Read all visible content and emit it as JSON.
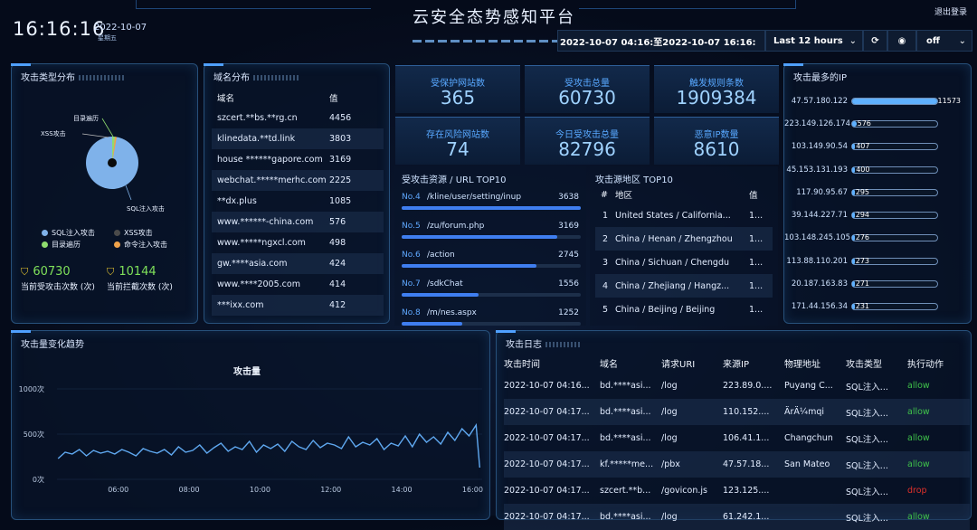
{
  "header": {
    "clock": "16:16:16",
    "date": "2022-10-07",
    "weekday": "星期五",
    "title": "云安全态势感知平台",
    "logout": "退出登录",
    "time_range": "2022-10-07 04:16:至2022-10-07 16:16:",
    "range_select": "Last 12 hours",
    "refresh_select": "off"
  },
  "attack_types": {
    "title": "攻击类型分布",
    "pie_labels": {
      "dir": "目录遍历",
      "xss": "XSS攻击",
      "sql": "SQL注入攻击"
    },
    "legend": [
      {
        "label": "SQL注入攻击",
        "color": "#7fb2ea"
      },
      {
        "label": "XSS攻击",
        "color": "#4a4a4a"
      },
      {
        "label": "目录遍历",
        "color": "#8fdc6e"
      },
      {
        "label": "命令注入攻击",
        "color": "#f0a24a"
      }
    ],
    "current_attacks": "60730",
    "current_attacks_label": "当前受攻击次数 (次)",
    "current_blocked": "10144",
    "current_blocked_label": "当前拦截次数 (次)"
  },
  "domains": {
    "title": "域名分布",
    "col_domain": "域名",
    "col_value": "值",
    "rows": [
      {
        "domain": "szcert.**bs.**rg.cn",
        "value": "4456"
      },
      {
        "domain": "klinedata.**td.link",
        "value": "3803"
      },
      {
        "domain": "house ******gapore.com",
        "value": "3169"
      },
      {
        "domain": "webchat.*****merhc.com",
        "value": "2225"
      },
      {
        "domain": "**dx.plus",
        "value": "1085"
      },
      {
        "domain": "www.******-china.com",
        "value": "576"
      },
      {
        "domain": "www.*****ngxcl.com",
        "value": "498"
      },
      {
        "domain": "gw.****asia.com",
        "value": "424"
      },
      {
        "domain": "www.****2005.com",
        "value": "414"
      },
      {
        "domain": "***ixx.com",
        "value": "412"
      }
    ]
  },
  "stats": [
    {
      "label": "受保护网站数",
      "value": "365"
    },
    {
      "label": "受攻击总量",
      "value": "60730"
    },
    {
      "label": "触发规则条数",
      "value": "1909384"
    },
    {
      "label": "存在风险网站数",
      "value": "74"
    },
    {
      "label": "今日受攻击总量",
      "value": "82796"
    },
    {
      "label": "恶意IP数量",
      "value": "8610"
    }
  ],
  "url_top": {
    "title": "受攻击资源 / URL TOP10",
    "rows": [
      {
        "no": "No.4",
        "url": "/kline/user/setting/inup",
        "value": "3638",
        "ratio": 1.0
      },
      {
        "no": "No.5",
        "url": "/zu/forum.php",
        "value": "3169",
        "ratio": 0.87
      },
      {
        "no": "No.6",
        "url": "/action",
        "value": "2745",
        "ratio": 0.75
      },
      {
        "no": "No.7",
        "url": "/sdkChat",
        "value": "1556",
        "ratio": 0.43
      },
      {
        "no": "No.8",
        "url": "/m/nes.aspx",
        "value": "1252",
        "ratio": 0.34
      }
    ]
  },
  "region_top": {
    "title": "攻击源地区 TOP10",
    "col_no": "#",
    "col_region": "地区",
    "col_value": "值",
    "rows": [
      {
        "no": "1",
        "region": "United States / California...",
        "value": "1..."
      },
      {
        "no": "2",
        "region": "China / Henan / Zhengzhou",
        "value": "1..."
      },
      {
        "no": "3",
        "region": "China / Sichuan / Chengdu",
        "value": "1..."
      },
      {
        "no": "4",
        "region": "China / Zhejiang / Hangz...",
        "value": "1..."
      },
      {
        "no": "5",
        "region": "China / Beijing / Beijing",
        "value": "1..."
      }
    ]
  },
  "top_ips": {
    "title": "攻击最多的IP",
    "rows": [
      {
        "ip": "47.57.180.122",
        "value": "11573",
        "ratio": 1.0
      },
      {
        "ip": "223.149.126.174",
        "value": "576",
        "ratio": 0.05
      },
      {
        "ip": "103.149.90.54",
        "value": "407",
        "ratio": 0.035
      },
      {
        "ip": "45.153.131.193",
        "value": "400",
        "ratio": 0.035
      },
      {
        "ip": "117.90.95.67",
        "value": "295",
        "ratio": 0.026
      },
      {
        "ip": "39.144.227.71",
        "value": "294",
        "ratio": 0.025
      },
      {
        "ip": "103.148.245.105",
        "value": "276",
        "ratio": 0.024
      },
      {
        "ip": "113.88.110.201",
        "value": "273",
        "ratio": 0.024
      },
      {
        "ip": "20.187.163.83",
        "value": "271",
        "ratio": 0.023
      },
      {
        "ip": "171.44.156.34",
        "value": "231",
        "ratio": 0.02
      }
    ]
  },
  "trend": {
    "title": "攻击量变化趋势"
  },
  "chart_data": {
    "type": "line",
    "title": "攻击量",
    "ylabel": "",
    "yticks": [
      "1000次",
      "500次",
      "0次"
    ],
    "xticks": [
      "06:00",
      "08:00",
      "10:00",
      "12:00",
      "14:00",
      "16:00"
    ],
    "ylim": [
      0,
      1000
    ],
    "xlim": [
      4.27,
      16.27
    ],
    "series": [
      {
        "color": "#5fa8f0",
        "x": [
          4.3,
          4.5,
          4.7,
          4.9,
          5.1,
          5.3,
          5.5,
          5.7,
          5.9,
          6.1,
          6.3,
          6.5,
          6.7,
          6.9,
          7.1,
          7.3,
          7.5,
          7.7,
          7.9,
          8.1,
          8.3,
          8.5,
          8.7,
          8.9,
          9.1,
          9.3,
          9.5,
          9.7,
          9.9,
          10.1,
          10.3,
          10.5,
          10.7,
          10.9,
          11.1,
          11.3,
          11.5,
          11.7,
          11.9,
          12.1,
          12.3,
          12.5,
          12.7,
          12.9,
          13.1,
          13.3,
          13.5,
          13.7,
          13.9,
          14.1,
          14.3,
          14.5,
          14.7,
          14.9,
          15.1,
          15.3,
          15.5,
          15.7,
          15.9,
          16.1,
          16.2
        ],
        "y": [
          230,
          300,
          280,
          330,
          260,
          320,
          290,
          310,
          280,
          330,
          300,
          260,
          340,
          310,
          290,
          330,
          270,
          360,
          300,
          320,
          380,
          290,
          350,
          400,
          310,
          360,
          330,
          420,
          300,
          380,
          340,
          390,
          310,
          420,
          360,
          330,
          430,
          350,
          400,
          380,
          340,
          470,
          360,
          410,
          380,
          450,
          330,
          400,
          370,
          480,
          360,
          500,
          410,
          470,
          390,
          520,
          430,
          560,
          480,
          600,
          130
        ]
      }
    ]
  },
  "logs": {
    "title": "攻击日志",
    "columns": [
      "攻击时间",
      "域名",
      "请求URI",
      "来源IP",
      "物理地址",
      "攻击类型",
      "执行动作"
    ],
    "rows": [
      {
        "time": "2022-10-07 04:16...",
        "domain": "bd.****asi...",
        "uri": "/log",
        "ip": "223.89.0....",
        "addr": "Puyang C...",
        "type": "SQL注入...",
        "action": "allow"
      },
      {
        "time": "2022-10-07 04:17...",
        "domain": "bd.****asi...",
        "uri": "/log",
        "ip": "110.152....",
        "addr": "ÄrÄ¼mqi",
        "type": "SQL注入...",
        "action": "allow"
      },
      {
        "time": "2022-10-07 04:17...",
        "domain": "bd.****asi...",
        "uri": "/log",
        "ip": "106.41.1...",
        "addr": "Changchun",
        "type": "SQL注入...",
        "action": "allow"
      },
      {
        "time": "2022-10-07 04:17...",
        "domain": "kf.*****me...",
        "uri": "/pbx",
        "ip": "47.57.18...",
        "addr": "San Mateo",
        "type": "SQL注入...",
        "action": "allow"
      },
      {
        "time": "2022-10-07 04:17...",
        "domain": "szcert.**b...",
        "uri": "/govicon.js",
        "ip": "123.125....",
        "addr": "",
        "type": "SQL注入...",
        "action": "drop"
      },
      {
        "time": "2022-10-07 04:17...",
        "domain": "bd.****asi...",
        "uri": "/log",
        "ip": "61.242.1...",
        "addr": "",
        "type": "SQL注入...",
        "action": "allow"
      }
    ],
    "allow_color": "#3fc24a",
    "drop_color": "#e0302a"
  }
}
